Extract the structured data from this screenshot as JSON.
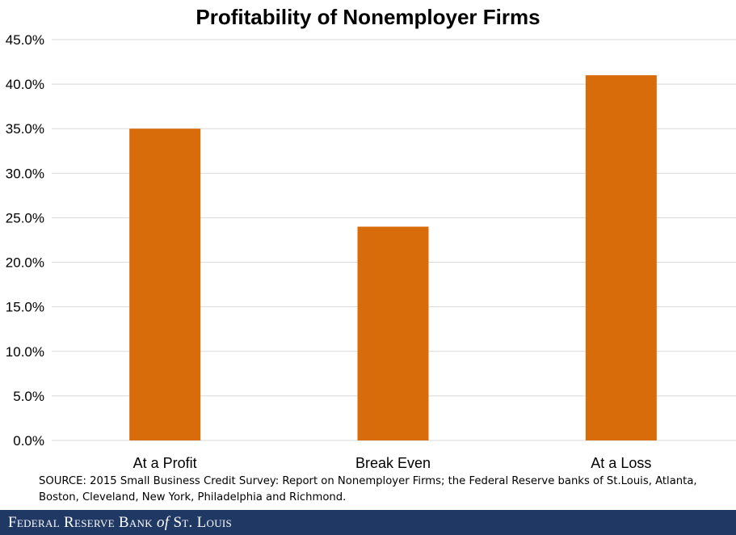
{
  "chart_data": {
    "type": "bar",
    "title": "Profitability of Nonemployer Firms",
    "categories": [
      "At a Profit",
      "Break Even",
      "At a Loss"
    ],
    "values": [
      35.0,
      24.0,
      41.0
    ],
    "xlabel": "",
    "ylabel": "",
    "ylim": [
      0,
      45
    ],
    "ytick_step": 5,
    "y_ticks": [
      "0.0%",
      "5.0%",
      "10.0%",
      "15.0%",
      "20.0%",
      "25.0%",
      "30.0%",
      "35.0%",
      "40.0%",
      "45.0%"
    ],
    "grid": true,
    "legend": "none",
    "bar_color": "#d96c0a",
    "grid_color": "#d9d9d9"
  },
  "source": "SOURCE: 2015 Small Business Credit Survey: Report on Nonemployer Firms; the Federal Reserve banks of St.Louis, Atlanta, Boston, Cleveland, New York, Philadelphia and Richmond.",
  "footer": {
    "text_before": "Federal Reserve Bank",
    "text_italic": "of",
    "text_after": "St. Louis",
    "background": "#1f3864",
    "text_color": "#ffffff"
  }
}
